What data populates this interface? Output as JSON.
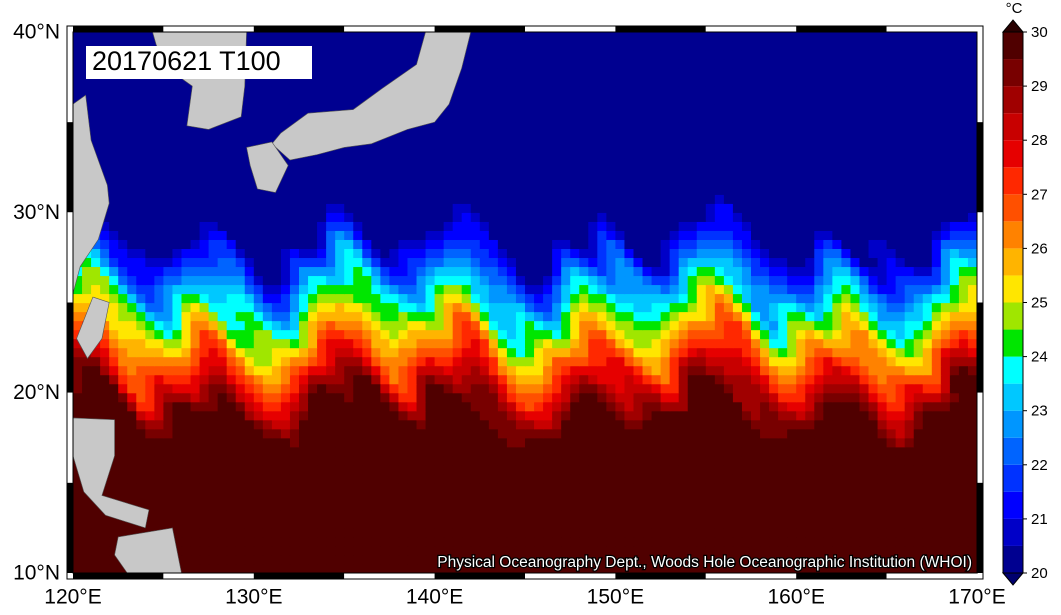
{
  "map": {
    "title": "20170621 T100",
    "lat_labels": [
      "40°N",
      "30°N",
      "20°N",
      "10°N"
    ],
    "lon_labels": [
      "120°E",
      "130°E",
      "140°E",
      "150°E",
      "160°E",
      "170°E"
    ],
    "credit": "Physical Oceanography Dept., Woods Hole Oceanographic Institution (WHOI)",
    "colorbar": {
      "unit": "°C",
      "lim": [
        20,
        30
      ],
      "ticks": [
        20,
        21,
        22,
        23,
        24,
        25,
        26,
        27,
        28,
        29,
        30
      ],
      "colors": [
        "#000090",
        "#0000c8",
        "#0000ff",
        "#0032ff",
        "#0064ff",
        "#0096ff",
        "#00c8ff",
        "#00ffff",
        "#00e600",
        "#a0e600",
        "#ffe600",
        "#ffb400",
        "#ff8200",
        "#ff5000",
        "#ff2800",
        "#e60000",
        "#c80000",
        "#a00000",
        "#780000",
        "#500000"
      ]
    }
  }
}
